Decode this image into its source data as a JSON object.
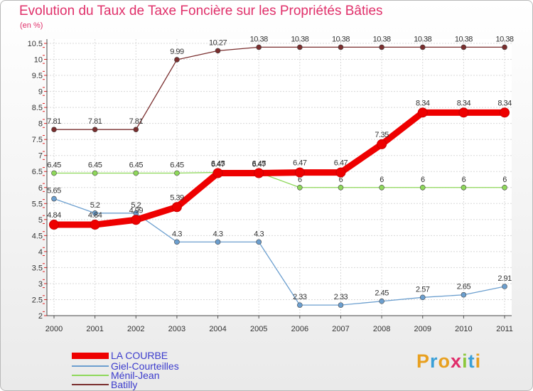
{
  "chart_data": {
    "type": "line",
    "title": "Evolution du Taux de Taxe Foncière sur les Propriétés Bâties",
    "ylabel": "(en %)",
    "xlabel": "",
    "categories": [
      "2000",
      "2001",
      "2002",
      "2003",
      "2004",
      "2005",
      "2006",
      "2007",
      "2008",
      "2009",
      "2010",
      "2011"
    ],
    "ylim": [
      2,
      10.5
    ],
    "yticks": [
      "2",
      "2.5",
      "3",
      "3.5",
      "4",
      "4.5",
      "5",
      "5.5",
      "6",
      "6.5",
      "7",
      "7.5",
      "8",
      "8.5",
      "9",
      "9.5",
      "10",
      "10.5"
    ],
    "series": [
      {
        "name": "LA COURBE",
        "color": "#ee0000",
        "values": [
          4.84,
          4.84,
          4.99,
          5.39,
          6.45,
          6.45,
          6.47,
          6.47,
          7.35,
          8.34,
          8.34,
          8.34
        ],
        "labels": [
          "4.84",
          "4.84",
          "4.99",
          "5.39",
          "6.45",
          "6.45",
          "6.47",
          "6.47",
          "7.35",
          "8.34",
          "8.34",
          "8.34"
        ]
      },
      {
        "name": "Giel-Courteilles",
        "color": "#6c9fcf",
        "values": [
          5.65,
          5.2,
          5.2,
          4.3,
          4.3,
          4.3,
          2.33,
          2.33,
          2.45,
          2.57,
          2.65,
          2.91
        ],
        "labels": [
          "5.65",
          "5.2",
          "5.2",
          "4.3",
          "4.3",
          "4.3",
          "2.33",
          "2.33",
          "2.45",
          "2.57",
          "2.65",
          "2.91"
        ]
      },
      {
        "name": "Ménil-Jean",
        "color": "#8ed85a",
        "values": [
          6.45,
          6.45,
          6.45,
          6.45,
          6.47,
          6.47,
          6,
          6,
          6,
          6,
          6,
          6
        ],
        "labels": [
          "6.45",
          "6.45",
          "6.45",
          "6.45",
          "6.47",
          "6.47",
          "6",
          "6",
          "6",
          "6",
          "6",
          "6"
        ]
      },
      {
        "name": "Batilly",
        "color": "#7a2e2e",
        "values": [
          7.81,
          7.81,
          7.81,
          9.99,
          10.27,
          10.38,
          10.38,
          10.38,
          10.38,
          10.38,
          10.38,
          10.38
        ],
        "labels": [
          "7.81",
          "7.81",
          "7.81",
          "9.99",
          "10.27",
          "10.38",
          "10.38",
          "10.38",
          "10.38",
          "10.38",
          "10.38",
          "10.38"
        ]
      }
    ]
  },
  "logo": {
    "text": "Proxiti",
    "letters": [
      "P",
      "r",
      "o",
      "x",
      "i",
      "t",
      "i"
    ]
  }
}
